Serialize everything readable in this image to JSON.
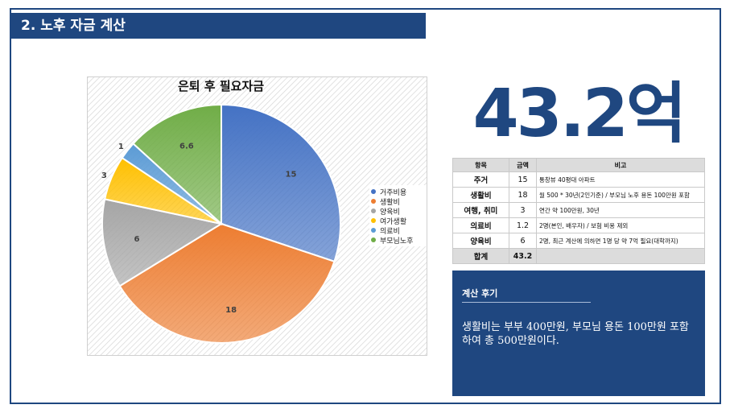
{
  "section": {
    "title": "2. 노후 자금 계산"
  },
  "summary": {
    "total_display": "43.2억"
  },
  "chart_data": {
    "type": "pie",
    "title": "은퇴 후 필요자금",
    "categories": [
      "거주비용",
      "생활비",
      "양육비",
      "여가생활",
      "의료비",
      "부모님노후"
    ],
    "values": [
      15,
      18,
      6,
      3,
      1.2,
      6.6
    ],
    "data_labels": [
      "15",
      "18",
      "6",
      "3",
      "1",
      "6.6"
    ],
    "colors": [
      "#4472c4",
      "#ed7d31",
      "#a5a5a5",
      "#ffc000",
      "#5b9bd5",
      "#70ad47"
    ],
    "legend_position": "right"
  },
  "table": {
    "headers": [
      "항목",
      "금액",
      "비고"
    ],
    "rows": [
      {
        "item": "주거",
        "amount": "15",
        "note": "통창뷰 40평대 아파트"
      },
      {
        "item": "생활비",
        "amount": "18",
        "note": "월 500 * 30년(2인기준) / 부모님 노후 용돈 100만원 포함"
      },
      {
        "item": "여행, 취미",
        "amount": "3",
        "note": "연간 약 100만원, 30년"
      },
      {
        "item": "의료비",
        "amount": "1.2",
        "note": "2명(본인, 배우자) / 보험 비용 제외"
      },
      {
        "item": "양육비",
        "amount": "6",
        "note": "2명, 최근 계산에 의하면 1명 당 약 7억 필요(대학까지)"
      }
    ],
    "total": {
      "item": "합계",
      "amount": "43.2",
      "note": ""
    }
  },
  "review": {
    "title": "계산 후기",
    "text": "생활비는 부부 400만원, 부모님 용돈 100만원 포함하여 총 500만원이다."
  }
}
